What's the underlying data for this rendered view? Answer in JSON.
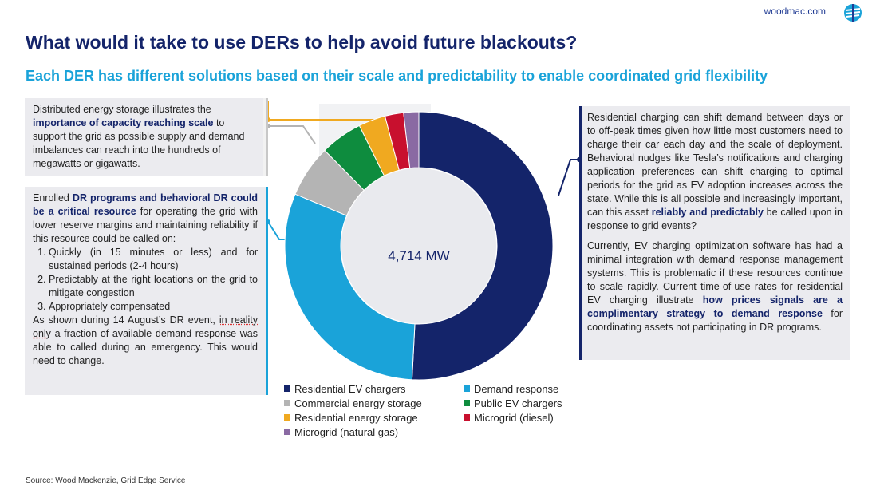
{
  "brand": "woodmac.com",
  "title": "What would it take to use DERs to help avoid future blackouts?",
  "subtitle": "Each DER has different solutions based on their scale and predictability to enable coordinated grid flexibility",
  "center_value": "4,714 MW",
  "source": "Source: Wood Mackenzie, Grid Edge Service",
  "boxes": {
    "storage": {
      "t1": "Distributed energy storage illustrates the ",
      "b1": "importance of capacity reaching scale",
      "t2": " to support the grid as possible supply and demand imbalances can reach into the hundreds of megawatts or gigawatts."
    },
    "dr": {
      "t1": "Enrolled ",
      "b1": "DR programs and behavioral DR could be a critical resource",
      "t2": " for operating the grid with lower reserve margins and maintaining reliability if this resource could be called on:",
      "items": [
        "Quickly (in 15 minutes or less) and for sustained periods (2-4 hours)",
        "Predictably at the right locations on the grid to mitigate congestion",
        "Appropriately compensated"
      ],
      "t3": "As shown during 14 August’s DR event, ",
      "u1": "in reality only",
      "t4": " a fraction of available demand response was able to called during an emergency. This would need to change."
    },
    "ev": {
      "p1a": "Residential charging can shift demand between days or to off-peak times given how little most customers need to charge their car each day and the scale of deployment. Behavioral nudges like Tesla’s notifications and charging application preferences can shift charging to optimal periods for the grid as EV adoption increases across the state. While this is all possible and increasingly important, can this asset ",
      "p1b": "reliably and predictably",
      "p1c": " be called upon in response to grid events?",
      "p2a": "Currently, EV charging optimization software has had a minimal integration with demand response management systems. This is problematic if these resources continue to scale rapidly. Current time-of-use rates for residential EV charging illustrate ",
      "p2b": "how prices signals are a complimentary strategy to demand response",
      "p2c": " for coordinating assets not participating in DR programs."
    }
  },
  "chart_data": {
    "type": "pie",
    "donut": true,
    "total_label": "4,714 MW",
    "series": [
      {
        "name": "Residential EV chargers",
        "value": 50.0,
        "color": "#14246a"
      },
      {
        "name": "Demand response",
        "value": 30.0,
        "color": "#1aa3d9"
      },
      {
        "name": "Commercial energy storage",
        "value": 6.2,
        "color": "#b4b4b4"
      },
      {
        "name": "Public EV chargers",
        "value": 5.0,
        "color": "#0e8c3e"
      },
      {
        "name": "Residential energy storage",
        "value": 3.2,
        "color": "#f0a920"
      },
      {
        "name": "Microgrid (diesel)",
        "value": 2.2,
        "color": "#c8102e"
      },
      {
        "name": "Microgrid (natural gas)",
        "value": 1.8,
        "color": "#8a6aa3"
      }
    ],
    "legend_placement": "bottom"
  }
}
